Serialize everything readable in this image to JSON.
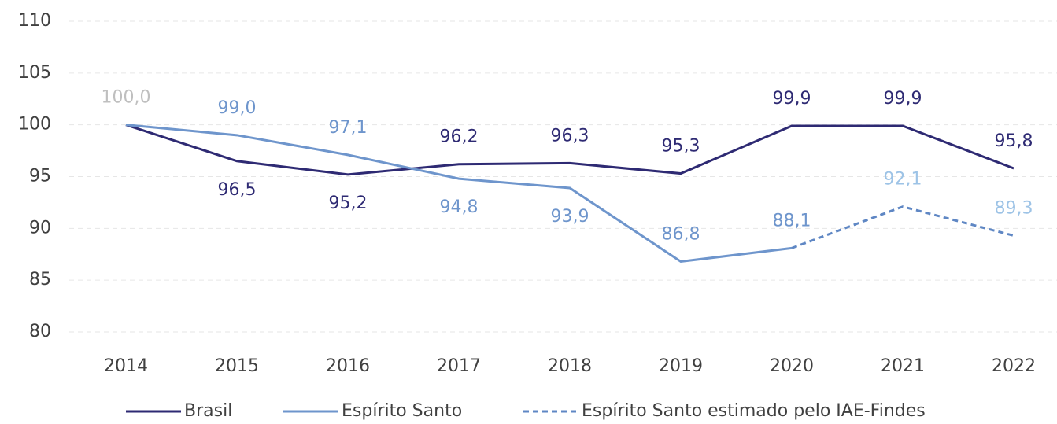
{
  "chart_data": {
    "type": "line",
    "x": [
      "2014",
      "2015",
      "2016",
      "2017",
      "2018",
      "2019",
      "2020",
      "2021",
      "2022"
    ],
    "ylim": [
      80,
      110
    ],
    "yticks": [
      80,
      85,
      90,
      95,
      100,
      105,
      110
    ],
    "grid": true,
    "legend": "bottom",
    "start_label_color": "#bfbfbf",
    "series": [
      {
        "name": "Brasil",
        "color": "#2e2a73",
        "label_color": "#2e2a73",
        "dashed": false,
        "values": [
          100.0,
          96.5,
          95.2,
          96.2,
          96.3,
          95.3,
          99.9,
          99.9,
          95.8
        ],
        "value_labels": [
          "100,0",
          "96,5",
          "95,2",
          "96,2",
          "96,3",
          "95,3",
          "99,9",
          "99,9",
          "95,8"
        ],
        "label_position": [
          "above",
          "below",
          "below",
          "above",
          "above",
          "above",
          "above",
          "above",
          "above"
        ]
      },
      {
        "name": "Espírito Santo",
        "color": "#6e95cc",
        "label_color": "#6e95cc",
        "dashed": false,
        "values": [
          100.0,
          99.0,
          97.1,
          94.8,
          93.9,
          86.8,
          88.1,
          null,
          null
        ],
        "value_labels": [
          null,
          "99,0",
          "97,1",
          "94,8",
          "93,9",
          "86,8",
          "88,1",
          null,
          null
        ],
        "label_position": [
          "above",
          "above",
          "above",
          "below",
          "below",
          "above",
          "above",
          "above",
          "above"
        ]
      },
      {
        "name": "Espírito Santo estimado pelo IAE-Findes",
        "color": "#5f87c4",
        "label_color": "#9dc3e6",
        "dashed": true,
        "values": [
          null,
          null,
          null,
          null,
          null,
          null,
          88.1,
          92.1,
          89.3
        ],
        "value_labels": [
          null,
          null,
          null,
          null,
          null,
          null,
          null,
          "92,1",
          "89,3"
        ],
        "label_position": [
          "above",
          "above",
          "above",
          "above",
          "above",
          "above",
          "above",
          "above",
          "above"
        ]
      }
    ]
  }
}
